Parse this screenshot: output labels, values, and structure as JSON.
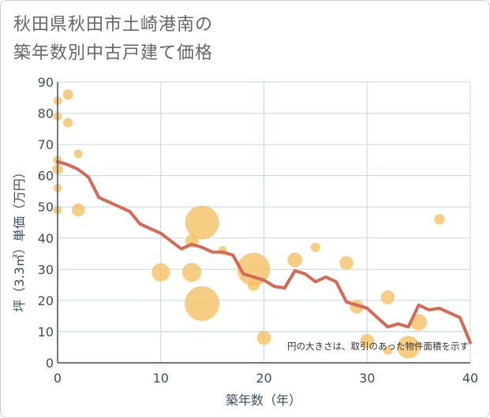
{
  "title_line1": "秋田県秋田市土崎港南の",
  "title_line2": "築年数別中古戸建て価格",
  "chart_data": {
    "type": "scatter",
    "title": "秋田県秋田市土崎港南の築年数別中古戸建て価格",
    "xlabel": "築年数（年）",
    "ylabel": "坪（3.3㎡）単価（万円）",
    "xlim": [
      0,
      40
    ],
    "ylim": [
      0,
      90
    ],
    "xticks": [
      0,
      10,
      20,
      30,
      40
    ],
    "yticks": [
      0,
      10,
      20,
      30,
      40,
      50,
      60,
      70,
      80,
      90
    ],
    "grid": true,
    "note": "円の大きさは、取引のあった物件面積を示す",
    "colors": {
      "bubble": "#f5c065",
      "line": "#d46a55",
      "grid": "#c8d6e6",
      "axis": "#3d4f63"
    },
    "bubbles": [
      {
        "x": 0,
        "y": 84,
        "size": 1
      },
      {
        "x": 0,
        "y": 79,
        "size": 1
      },
      {
        "x": 0,
        "y": 65,
        "size": 1
      },
      {
        "x": 0,
        "y": 62,
        "size": 1.2
      },
      {
        "x": 0,
        "y": 56,
        "size": 1
      },
      {
        "x": 0,
        "y": 49,
        "size": 1
      },
      {
        "x": 1,
        "y": 86,
        "size": 1.2
      },
      {
        "x": 1,
        "y": 77,
        "size": 1.1
      },
      {
        "x": 2,
        "y": 67,
        "size": 1
      },
      {
        "x": 2,
        "y": 49,
        "size": 1.5
      },
      {
        "x": 10,
        "y": 29,
        "size": 2.1
      },
      {
        "x": 13,
        "y": 39,
        "size": 1.5
      },
      {
        "x": 13,
        "y": 29,
        "size": 2.2
      },
      {
        "x": 14,
        "y": 45,
        "size": 3.9
      },
      {
        "x": 14,
        "y": 19,
        "size": 4.0
      },
      {
        "x": 16,
        "y": 36,
        "size": 1
      },
      {
        "x": 19,
        "y": 30,
        "size": 3.8
      },
      {
        "x": 19,
        "y": 25,
        "size": 1.4
      },
      {
        "x": 20,
        "y": 8,
        "size": 1.6
      },
      {
        "x": 23,
        "y": 33,
        "size": 1.7
      },
      {
        "x": 25,
        "y": 37,
        "size": 1.1
      },
      {
        "x": 28,
        "y": 32,
        "size": 1.6
      },
      {
        "x": 29,
        "y": 18,
        "size": 1.6
      },
      {
        "x": 30,
        "y": 7,
        "size": 1.6
      },
      {
        "x": 32,
        "y": 21,
        "size": 1.6
      },
      {
        "x": 32,
        "y": 4,
        "size": 1
      },
      {
        "x": 34,
        "y": 5,
        "size": 2.6
      },
      {
        "x": 35,
        "y": 13,
        "size": 1.9
      },
      {
        "x": 37,
        "y": 46,
        "size": 1.2
      }
    ],
    "line": {
      "x": [
        0,
        1,
        2,
        3,
        4,
        5,
        6,
        7,
        8,
        9,
        10,
        11,
        12,
        13,
        14,
        15,
        16,
        17,
        18,
        19,
        20,
        21,
        22,
        23,
        24,
        25,
        26,
        27,
        28,
        29,
        30,
        31,
        32,
        33,
        34,
        35,
        36,
        37,
        38,
        39,
        40
      ],
      "y": [
        64.5,
        63.5,
        62,
        59.5,
        53,
        51.5,
        50,
        48.5,
        44.5,
        43,
        41.5,
        39,
        36.5,
        38,
        37,
        35.5,
        35.5,
        34.5,
        28.5,
        27.5,
        26.5,
        24.5,
        24,
        29.5,
        28.5,
        26,
        27.5,
        26,
        19.5,
        18.5,
        17.5,
        14.5,
        11.5,
        12.5,
        11.5,
        18.5,
        17,
        17.5,
        16,
        14.5,
        6.5
      ]
    }
  }
}
